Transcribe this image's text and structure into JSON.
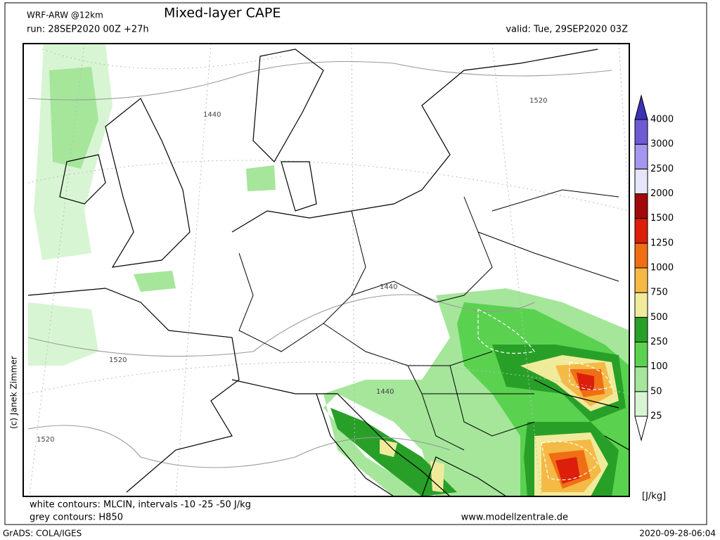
{
  "header": {
    "model": "WRF-ARW @12km",
    "title": "Mixed-layer CAPE",
    "run": "run: 28SEP2020 00Z +27h",
    "valid": "valid: Tue, 29SEP2020 03Z"
  },
  "map": {
    "contour_labels": [
      "1440",
      "1520",
      "1440",
      "1440",
      "1520",
      "1520"
    ]
  },
  "legend": {
    "levels": [
      25,
      50,
      100,
      250,
      500,
      750,
      1000,
      1250,
      1500,
      2000,
      2500,
      3000,
      4000
    ],
    "colors": [
      "#ffffff",
      "#d7f5d2",
      "#a5e69b",
      "#5ad250",
      "#28a028",
      "#f0eb9b",
      "#f5b946",
      "#f06e14",
      "#dc1e0a",
      "#a00a0a",
      "#e6e6fa",
      "#a596f0",
      "#6e5ad2",
      "#3c32b4"
    ],
    "unit": "[J/kg]"
  },
  "footer": {
    "copyright": "(c) Janek Zimmer",
    "note_white": "white contours: MLCIN, intervals -10 -25 -50 J/kg",
    "note_grey": "grey contours: H850",
    "website": "www.modellzentrale.de",
    "software": "GrADS: COLA/IGES",
    "timestamp": "2020-09-28-06:04"
  }
}
